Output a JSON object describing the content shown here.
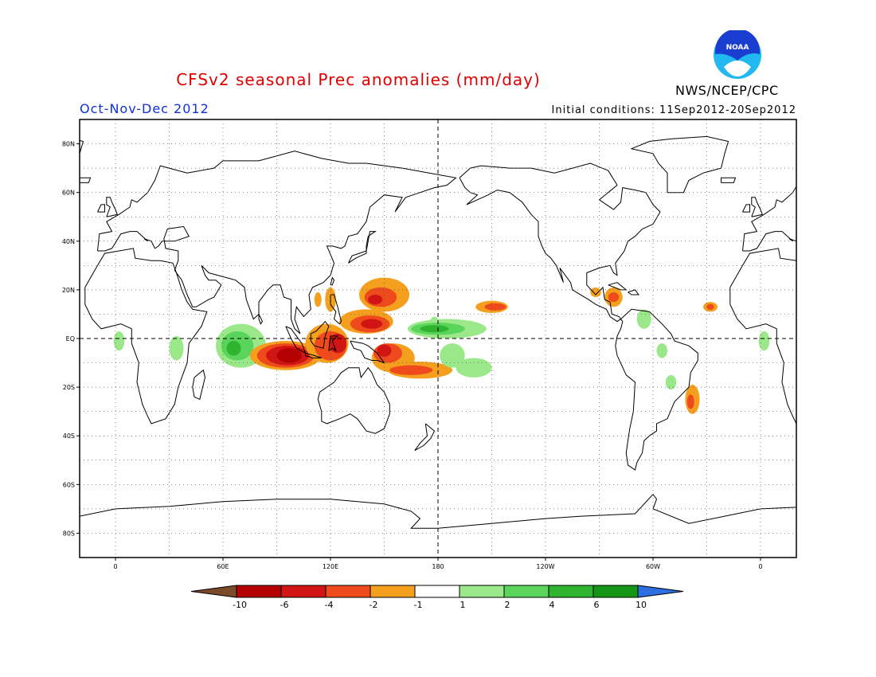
{
  "title": "CFSv2 seasonal Prec anomalies (mm/day)",
  "season": "Oct-Nov-Dec 2012",
  "initial_conditions": "Initial conditions: 11Sep2012-20Sep2012",
  "agency": "NWS/NCEP/CPC",
  "logo_text": "NOAA",
  "colors": {
    "title": "#e00000",
    "season": "#1030e0",
    "logo_blue": "#1a3fd0",
    "logo_cyan": "#22b8f0"
  },
  "map": {
    "lon_ticks": [
      "0",
      "60E",
      "120E",
      "180",
      "120W",
      "60W",
      "0"
    ],
    "lat_ticks": [
      "80N",
      "60N",
      "40N",
      "20N",
      "EQ",
      "20S",
      "40S",
      "60S",
      "80S"
    ],
    "lon_range": [
      -20,
      380
    ],
    "lat_range": [
      -90,
      90
    ],
    "grid": "dotted"
  },
  "colorbar": {
    "ticks": [
      "-10",
      "-6",
      "-4",
      "-2",
      "-1",
      "1",
      "2",
      "4",
      "6",
      "10"
    ],
    "colors": [
      "#7a4a2a",
      "#b40000",
      "#d11414",
      "#ee4a1c",
      "#f4a01e",
      "#ffffff",
      "#9ae88a",
      "#5ad45a",
      "#2eb42e",
      "#149614",
      "#2d6fe0"
    ]
  }
}
